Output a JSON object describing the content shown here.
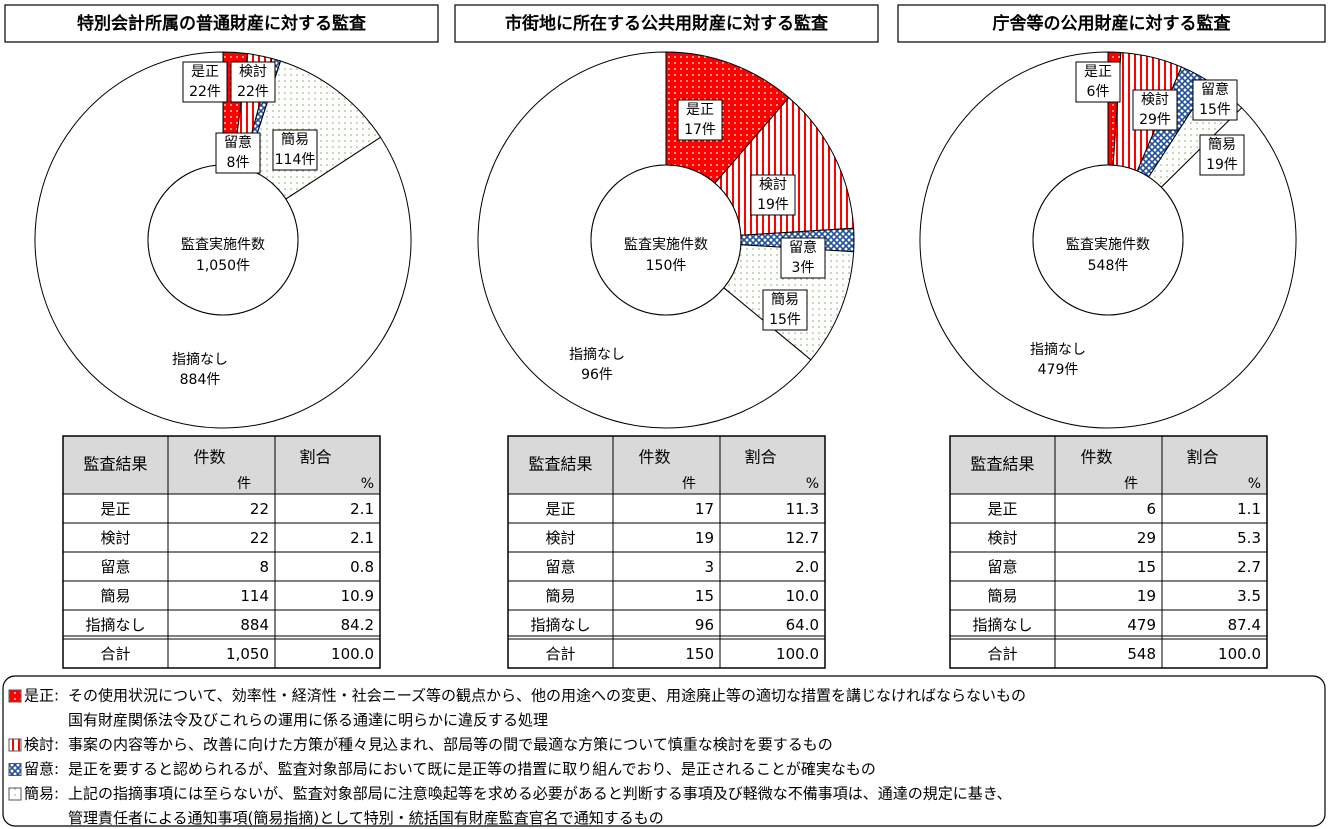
{
  "chart_data": [
    {
      "type": "pie",
      "title": "特別会計所属の普通財産に対する監査",
      "categories": [
        "是正",
        "検討",
        "留意",
        "簡易",
        "指摘なし"
      ],
      "values": [
        22,
        22,
        8,
        114,
        884
      ],
      "value_labels": [
        "22件",
        "22件",
        "8件",
        "114件",
        "884件"
      ],
      "colors": [
        "#ff0000",
        "#ff0000",
        "#1f4e9e",
        "#7fb34a",
        "#ffffff"
      ],
      "center_label": "監査実施件数",
      "total_label": "1,050件"
    },
    {
      "type": "pie",
      "title": "市街地に所在する公共用財産に対する監査",
      "categories": [
        "是正",
        "検討",
        "留意",
        "簡易",
        "指摘なし"
      ],
      "values": [
        17,
        19,
        3,
        15,
        96
      ],
      "value_labels": [
        "17件",
        "19件",
        "3件",
        "15件",
        "96件"
      ],
      "colors": [
        "#ff0000",
        "#ff0000",
        "#1f4e9e",
        "#7fb34a",
        "#ffffff"
      ],
      "center_label": "監査実施件数",
      "total_label": "150件"
    },
    {
      "type": "pie",
      "title": "庁舎等の公用財産に対する監査",
      "categories": [
        "是正",
        "検討",
        "留意",
        "簡易",
        "指摘なし"
      ],
      "values": [
        6,
        29,
        15,
        19,
        479
      ],
      "value_labels": [
        "6件",
        "29件",
        "15件",
        "19件",
        "479件"
      ],
      "colors": [
        "#ff0000",
        "#ff0000",
        "#1f4e9e",
        "#7fb34a",
        "#ffffff"
      ],
      "center_label": "監査実施件数",
      "total_label": "548件"
    }
  ],
  "tables": [
    {
      "header": [
        "監査結果",
        "件数",
        "割合"
      ],
      "units": [
        "件",
        "%"
      ],
      "rows": [
        [
          "是正",
          "22",
          "2.1"
        ],
        [
          "検討",
          "22",
          "2.1"
        ],
        [
          "留意",
          "8",
          "0.8"
        ],
        [
          "簡易",
          "114",
          "10.9"
        ],
        [
          "指摘なし",
          "884",
          "84.2"
        ],
        [
          "合計",
          "1,050",
          "100.0"
        ]
      ]
    },
    {
      "header": [
        "監査結果",
        "件数",
        "割合"
      ],
      "units": [
        "件",
        "%"
      ],
      "rows": [
        [
          "是正",
          "17",
          "11.3"
        ],
        [
          "検討",
          "19",
          "12.7"
        ],
        [
          "留意",
          "3",
          "2.0"
        ],
        [
          "簡易",
          "15",
          "10.0"
        ],
        [
          "指摘なし",
          "96",
          "64.0"
        ],
        [
          "合計",
          "150",
          "100.0"
        ]
      ]
    },
    {
      "header": [
        "監査結果",
        "件数",
        "割合"
      ],
      "units": [
        "件",
        "%"
      ],
      "rows": [
        [
          "是正",
          "6",
          "1.1"
        ],
        [
          "検討",
          "29",
          "5.3"
        ],
        [
          "留意",
          "15",
          "2.7"
        ],
        [
          "簡易",
          "19",
          "3.5"
        ],
        [
          "指摘なし",
          "479",
          "87.4"
        ],
        [
          "合計",
          "548",
          "100.0"
        ]
      ]
    }
  ],
  "legend": [
    {
      "term": "是正:",
      "desc": [
        "その使用状況について、効率性・経済性・社会ニーズ等の観点から、他の用途への変更、用途廃止等の適切な措置を講じなければならないもの",
        "国有財産関係法令及びこれらの運用に係る通達に明らかに違反する処理"
      ]
    },
    {
      "term": "検討:",
      "desc": [
        "事案の内容等から、改善に向けた方策が種々見込まれ、部局等の間で最適な方策について慎重な検討を要するもの"
      ]
    },
    {
      "term": "留意:",
      "desc": [
        "是正を要すると認められるが、監査対象部局において既に是正等の措置に取り組んでおり、是正されることが確実なもの"
      ]
    },
    {
      "term": "簡易:",
      "desc": [
        "上記の指摘事項には至らないが、監査対象部局に注意喚起等を求める必要があると判断する事項及び軽微な不備事項は、通達の規定に基き、",
        "管理責任者による通知事項(簡易指摘)として特別・統括国有財産監査官名で通知するもの"
      ]
    }
  ]
}
